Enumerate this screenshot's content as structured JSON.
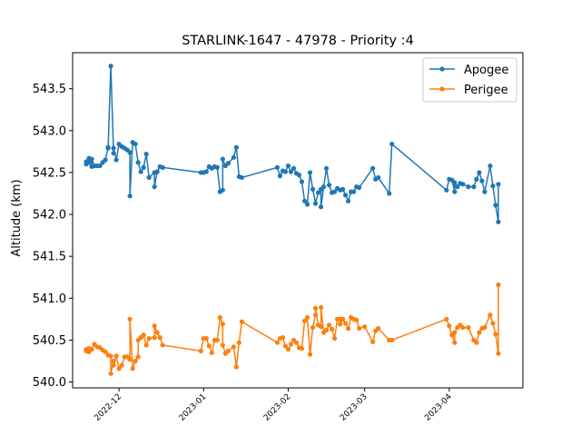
{
  "chart_data": {
    "type": "line",
    "title": "STARLINK-1647 - 47978 - Priority :4",
    "xlabel": "",
    "ylabel": "Altitude (km)",
    "ylim": [
      539.93,
      543.93
    ],
    "xlim": [
      "2022-11-14",
      "2023-04-28"
    ],
    "yticks": [
      540.0,
      540.5,
      541.0,
      541.5,
      542.0,
      542.5,
      543.0,
      543.5
    ],
    "ytick_labels": [
      "540.0",
      "540.5",
      "541.0",
      "541.5",
      "542.0",
      "542.5",
      "543.0",
      "543.5"
    ],
    "xticks": [
      "2022-12-01",
      "2023-01-01",
      "2023-02-01",
      "2023-03-01",
      "2023-04-01"
    ],
    "xtick_labels": [
      "2022-12",
      "2023-01",
      "2023-02",
      "2023-03",
      "2023-04"
    ],
    "grid": false,
    "legend_position": "top-right",
    "series": [
      {
        "name": "Apogee",
        "color": "#1f77b4",
        "points": [
          [
            "2022-11-19",
            542.6
          ],
          [
            "2022-11-19",
            542.63
          ],
          [
            "2022-11-20",
            542.67
          ],
          [
            "2022-11-20",
            542.62
          ],
          [
            "2022-11-21",
            542.57
          ],
          [
            "2022-11-21",
            542.66
          ],
          [
            "2022-11-22",
            542.58
          ],
          [
            "2022-11-23",
            542.58
          ],
          [
            "2022-11-24",
            542.58
          ],
          [
            "2022-11-25",
            542.62
          ],
          [
            "2022-11-26",
            542.65
          ],
          [
            "2022-11-27",
            542.8
          ],
          [
            "2022-11-27",
            542.79
          ],
          [
            "2022-11-28",
            543.77
          ],
          [
            "2022-11-29",
            542.73
          ],
          [
            "2022-11-29",
            542.79
          ],
          [
            "2022-11-30",
            542.65
          ],
          [
            "2022-12-01",
            542.84
          ],
          [
            "2022-12-02",
            542.81
          ],
          [
            "2022-12-03",
            542.79
          ],
          [
            "2022-12-04",
            542.77
          ],
          [
            "2022-12-05",
            542.74
          ],
          [
            "2022-12-05",
            542.22
          ],
          [
            "2022-12-06",
            542.86
          ],
          [
            "2022-12-07",
            542.84
          ],
          [
            "2022-12-08",
            542.62
          ],
          [
            "2022-12-09",
            542.51
          ],
          [
            "2022-12-10",
            542.56
          ],
          [
            "2022-12-11",
            542.72
          ],
          [
            "2022-12-12",
            542.44
          ],
          [
            "2022-12-14",
            542.5
          ],
          [
            "2022-12-14",
            542.33
          ],
          [
            "2022-12-15",
            542.51
          ],
          [
            "2022-12-16",
            542.57
          ],
          [
            "2022-12-17",
            542.56
          ],
          [
            "2022-12-31",
            542.5
          ],
          [
            "2023-01-01",
            542.5
          ],
          [
            "2023-01-02",
            542.51
          ],
          [
            "2023-01-03",
            542.57
          ],
          [
            "2023-01-04",
            542.55
          ],
          [
            "2023-01-05",
            542.57
          ],
          [
            "2023-01-06",
            542.56
          ],
          [
            "2023-01-07",
            542.27
          ],
          [
            "2023-01-08",
            542.29
          ],
          [
            "2023-01-08",
            542.66
          ],
          [
            "2023-01-09",
            542.58
          ],
          [
            "2023-01-10",
            542.61
          ],
          [
            "2023-01-12",
            542.68
          ],
          [
            "2023-01-13",
            542.8
          ],
          [
            "2023-01-14",
            542.45
          ],
          [
            "2023-01-15",
            542.44
          ],
          [
            "2023-01-28",
            542.56
          ],
          [
            "2023-01-29",
            542.46
          ],
          [
            "2023-01-30",
            542.52
          ],
          [
            "2023-01-31",
            542.51
          ],
          [
            "2023-02-01",
            542.58
          ],
          [
            "2023-02-02",
            542.51
          ],
          [
            "2023-02-03",
            542.55
          ],
          [
            "2023-02-04",
            542.49
          ],
          [
            "2023-02-05",
            542.47
          ],
          [
            "2023-02-06",
            542.39
          ],
          [
            "2023-02-07",
            542.16
          ],
          [
            "2023-02-08",
            542.12
          ],
          [
            "2023-02-09",
            542.5
          ],
          [
            "2023-02-10",
            542.3
          ],
          [
            "2023-02-11",
            542.13
          ],
          [
            "2023-02-12",
            542.26
          ],
          [
            "2023-02-13",
            542.3
          ],
          [
            "2023-02-13",
            542.09
          ],
          [
            "2023-02-14",
            542.33
          ],
          [
            "2023-02-15",
            542.55
          ],
          [
            "2023-02-16",
            542.35
          ],
          [
            "2023-02-17",
            542.26
          ],
          [
            "2023-02-18",
            542.27
          ],
          [
            "2023-02-19",
            542.31
          ],
          [
            "2023-02-20",
            542.29
          ],
          [
            "2023-02-21",
            542.3
          ],
          [
            "2023-02-22",
            542.23
          ],
          [
            "2023-02-23",
            542.16
          ],
          [
            "2023-02-24",
            542.27
          ],
          [
            "2023-02-25",
            542.27
          ],
          [
            "2023-02-26",
            542.33
          ],
          [
            "2023-02-27",
            542.32
          ],
          [
            "2023-03-04",
            542.55
          ],
          [
            "2023-03-05",
            542.42
          ],
          [
            "2023-03-06",
            542.44
          ],
          [
            "2023-03-10",
            542.25
          ],
          [
            "2023-03-11",
            542.84
          ],
          [
            "2023-03-31",
            542.29
          ],
          [
            "2023-04-01",
            542.42
          ],
          [
            "2023-04-02",
            542.41
          ],
          [
            "2023-04-03",
            542.27
          ],
          [
            "2023-04-03",
            542.38
          ],
          [
            "2023-04-04",
            542.33
          ],
          [
            "2023-04-05",
            542.37
          ],
          [
            "2023-04-06",
            542.36
          ],
          [
            "2023-04-08",
            542.33
          ],
          [
            "2023-04-10",
            542.33
          ],
          [
            "2023-04-11",
            542.42
          ],
          [
            "2023-04-12",
            542.5
          ],
          [
            "2023-04-13",
            542.4
          ],
          [
            "2023-04-14",
            542.27
          ],
          [
            "2023-04-16",
            542.58
          ],
          [
            "2023-04-17",
            542.34
          ],
          [
            "2023-04-18",
            542.11
          ],
          [
            "2023-04-19",
            541.91
          ],
          [
            "2023-04-19",
            542.36
          ]
        ]
      },
      {
        "name": "Perigee",
        "color": "#ff7f0e",
        "points": [
          [
            "2022-11-19",
            540.37
          ],
          [
            "2022-11-19",
            540.39
          ],
          [
            "2022-11-20",
            540.36
          ],
          [
            "2022-11-20",
            540.4
          ],
          [
            "2022-11-21",
            540.39
          ],
          [
            "2022-11-22",
            540.45
          ],
          [
            "2022-11-23",
            540.42
          ],
          [
            "2022-11-24",
            540.41
          ],
          [
            "2022-11-25",
            540.38
          ],
          [
            "2022-11-26",
            540.36
          ],
          [
            "2022-11-27",
            540.32
          ],
          [
            "2022-11-28",
            540.31
          ],
          [
            "2022-11-28",
            540.1
          ],
          [
            "2022-11-29",
            540.25
          ],
          [
            "2022-11-29",
            540.2
          ],
          [
            "2022-11-30",
            540.31
          ],
          [
            "2022-12-01",
            540.16
          ],
          [
            "2022-12-02",
            540.2
          ],
          [
            "2022-12-03",
            540.3
          ],
          [
            "2022-12-04",
            540.3
          ],
          [
            "2022-12-05",
            540.27
          ],
          [
            "2022-12-05",
            540.75
          ],
          [
            "2022-12-06",
            540.16
          ],
          [
            "2022-12-07",
            540.25
          ],
          [
            "2022-12-08",
            540.3
          ],
          [
            "2022-12-08",
            540.5
          ],
          [
            "2022-12-09",
            540.53
          ],
          [
            "2022-12-10",
            540.56
          ],
          [
            "2022-12-11",
            540.44
          ],
          [
            "2022-12-12",
            540.52
          ],
          [
            "2022-12-14",
            540.53
          ],
          [
            "2022-12-14",
            540.67
          ],
          [
            "2022-12-15",
            540.59
          ],
          [
            "2022-12-16",
            540.53
          ],
          [
            "2022-12-17",
            540.44
          ],
          [
            "2022-12-31",
            540.37
          ],
          [
            "2023-01-01",
            540.52
          ],
          [
            "2023-01-02",
            540.52
          ],
          [
            "2023-01-03",
            540.43
          ],
          [
            "2023-01-04",
            540.35
          ],
          [
            "2023-01-05",
            540.5
          ],
          [
            "2023-01-06",
            540.5
          ],
          [
            "2023-01-07",
            540.77
          ],
          [
            "2023-01-08",
            540.69
          ],
          [
            "2023-01-08",
            540.44
          ],
          [
            "2023-01-09",
            540.34
          ],
          [
            "2023-01-10",
            540.37
          ],
          [
            "2023-01-12",
            540.42
          ],
          [
            "2023-01-13",
            540.18
          ],
          [
            "2023-01-14",
            540.47
          ],
          [
            "2023-01-15",
            540.72
          ],
          [
            "2023-01-28",
            540.47
          ],
          [
            "2023-01-29",
            540.52
          ],
          [
            "2023-01-30",
            540.53
          ],
          [
            "2023-01-31",
            540.43
          ],
          [
            "2023-02-01",
            540.39
          ],
          [
            "2023-02-02",
            540.45
          ],
          [
            "2023-02-03",
            540.5
          ],
          [
            "2023-02-04",
            540.47
          ],
          [
            "2023-02-05",
            540.41
          ],
          [
            "2023-02-06",
            540.4
          ],
          [
            "2023-02-07",
            540.73
          ],
          [
            "2023-02-08",
            540.77
          ],
          [
            "2023-02-09",
            540.33
          ],
          [
            "2023-02-10",
            540.65
          ],
          [
            "2023-02-11",
            540.8
          ],
          [
            "2023-02-11",
            540.88
          ],
          [
            "2023-02-12",
            540.68
          ],
          [
            "2023-02-13",
            540.66
          ],
          [
            "2023-02-13",
            540.89
          ],
          [
            "2023-02-14",
            540.59
          ],
          [
            "2023-02-15",
            540.62
          ],
          [
            "2023-02-16",
            540.68
          ],
          [
            "2023-02-17",
            540.63
          ],
          [
            "2023-02-18",
            540.52
          ],
          [
            "2023-02-19",
            540.75
          ],
          [
            "2023-02-20",
            540.75
          ],
          [
            "2023-02-20",
            540.69
          ],
          [
            "2023-02-21",
            540.75
          ],
          [
            "2023-02-22",
            540.7
          ],
          [
            "2023-02-23",
            540.64
          ],
          [
            "2023-02-24",
            540.77
          ],
          [
            "2023-02-25",
            540.75
          ],
          [
            "2023-02-26",
            540.74
          ],
          [
            "2023-02-27",
            540.64
          ],
          [
            "2023-03-01",
            540.66
          ],
          [
            "2023-03-04",
            540.48
          ],
          [
            "2023-03-05",
            540.61
          ],
          [
            "2023-03-06",
            540.64
          ],
          [
            "2023-03-10",
            540.5
          ],
          [
            "2023-03-11",
            540.5
          ],
          [
            "2023-03-31",
            540.75
          ],
          [
            "2023-04-01",
            540.67
          ],
          [
            "2023-04-02",
            540.56
          ],
          [
            "2023-04-03",
            540.47
          ],
          [
            "2023-04-03",
            540.59
          ],
          [
            "2023-04-04",
            540.65
          ],
          [
            "2023-04-05",
            540.68
          ],
          [
            "2023-04-06",
            540.65
          ],
          [
            "2023-04-08",
            540.65
          ],
          [
            "2023-04-10",
            540.5
          ],
          [
            "2023-04-11",
            540.47
          ],
          [
            "2023-04-12",
            540.59
          ],
          [
            "2023-04-13",
            540.64
          ],
          [
            "2023-04-14",
            540.65
          ],
          [
            "2023-04-16",
            540.8
          ],
          [
            "2023-04-17",
            540.7
          ],
          [
            "2023-04-18",
            540.57
          ],
          [
            "2023-04-19",
            540.34
          ],
          [
            "2023-04-19",
            541.16
          ]
        ]
      }
    ]
  }
}
